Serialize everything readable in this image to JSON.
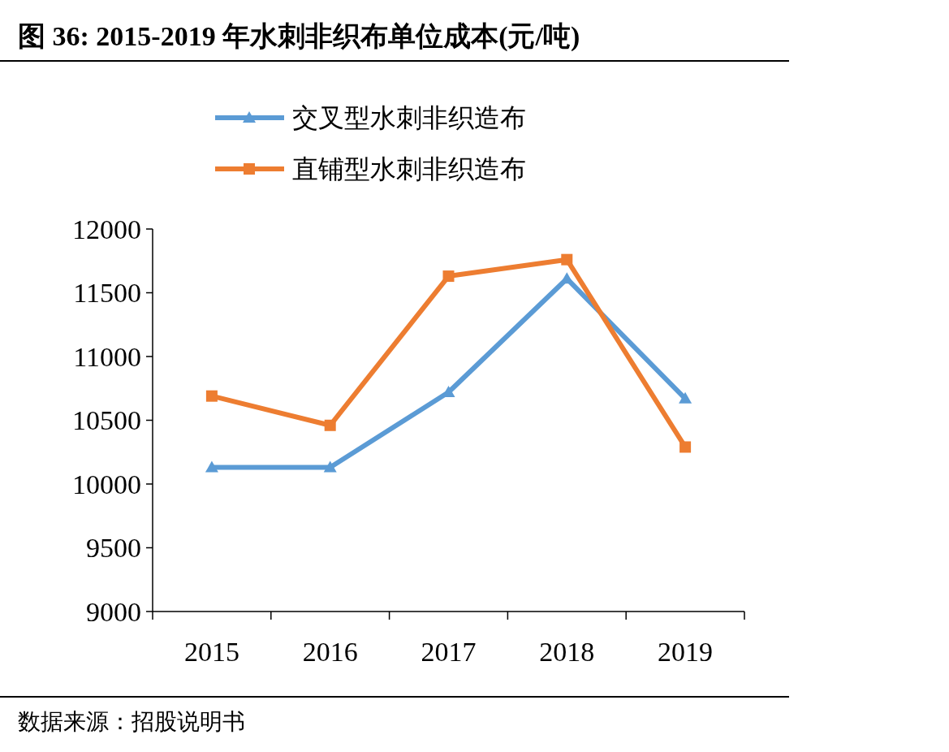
{
  "chart_data": {
    "type": "line",
    "title": "图 36: 2015-2019 年水刺非织布单位成本(元/吨)",
    "categories": [
      "2015",
      "2016",
      "2017",
      "2018",
      "2019"
    ],
    "series": [
      {
        "name": "交叉型水刺非织造布",
        "color": "#5b9bd5",
        "marker": "triangle",
        "values": [
          10130,
          10130,
          10720,
          11610,
          10670
        ]
      },
      {
        "name": "直铺型水刺非织造布",
        "color": "#ed7d31",
        "marker": "square",
        "values": [
          10690,
          10460,
          11630,
          11760,
          10290
        ]
      }
    ],
    "ylim": [
      9000,
      12000
    ],
    "yticks": [
      9000,
      9500,
      10000,
      10500,
      11000,
      11500,
      12000
    ],
    "grid": false,
    "legend": "top",
    "annotations": [
      "数据来源：招股说明书"
    ]
  }
}
